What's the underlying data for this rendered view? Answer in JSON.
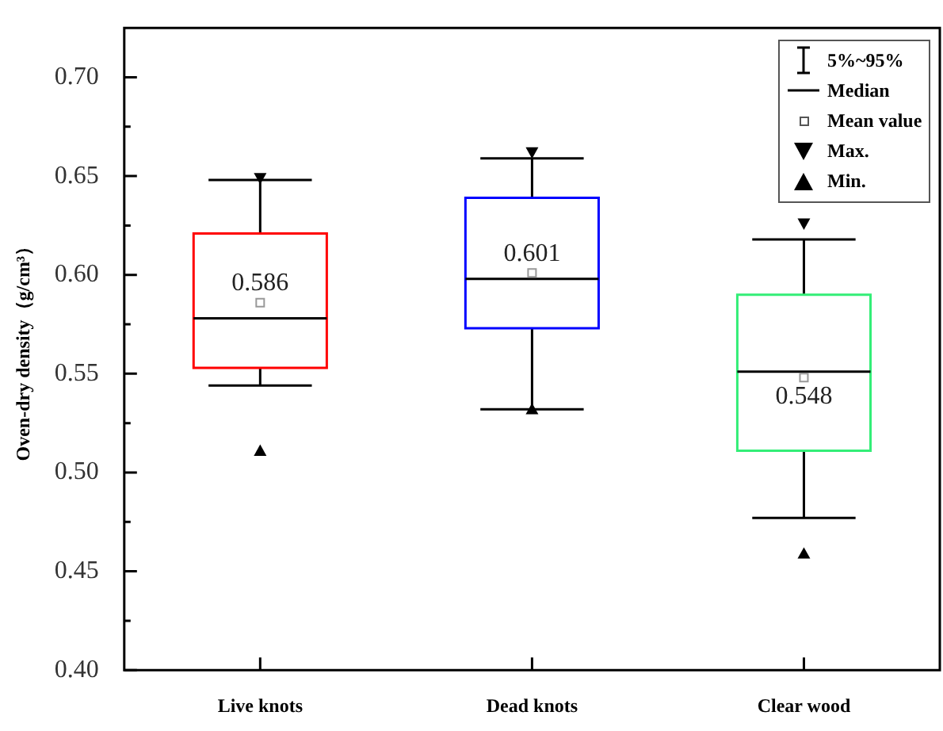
{
  "chart_data": {
    "type": "box",
    "ylabel": "Oven-dry density（g/cm³）",
    "categories": [
      "Live knots",
      "Dead knots",
      "Clear wood"
    ],
    "colors": [
      "#ff0000",
      "#0000ff",
      "#33ee77"
    ],
    "boxes": [
      {
        "low": 0.544,
        "q1": 0.553,
        "median": 0.578,
        "q3": 0.621,
        "high": 0.648,
        "mean": 0.586,
        "outliers": [
          0.649,
          0.511
        ]
      },
      {
        "low": 0.532,
        "q1": 0.573,
        "median": 0.598,
        "q3": 0.639,
        "high": 0.659,
        "mean": 0.601,
        "outliers": [
          0.662,
          0.532
        ]
      },
      {
        "low": 0.477,
        "q1": 0.511,
        "median": 0.551,
        "q3": 0.59,
        "high": 0.618,
        "mean": 0.548,
        "outliers": [
          0.626,
          0.459
        ]
      }
    ],
    "ylim": [
      0.4,
      0.725
    ],
    "yticks": [
      {
        "value": 0.4,
        "label": "0.40"
      },
      {
        "value": 0.425,
        "label": null
      },
      {
        "value": 0.45,
        "label": "0.45"
      },
      {
        "value": 0.475,
        "label": null
      },
      {
        "value": 0.5,
        "label": "0.50"
      },
      {
        "value": 0.525,
        "label": null
      },
      {
        "value": 0.55,
        "label": "0.55"
      },
      {
        "value": 0.575,
        "label": null
      },
      {
        "value": 0.6,
        "label": "0.60"
      },
      {
        "value": 0.625,
        "label": null
      },
      {
        "value": 0.65,
        "label": "0.65"
      },
      {
        "value": 0.675,
        "label": null
      },
      {
        "value": 0.7,
        "label": "0.70"
      }
    ],
    "annotations": [
      "5%~95%",
      "Median",
      "Mean value",
      "Max.",
      "Min.",
      "0.586",
      "0.601",
      "0.548"
    ]
  }
}
